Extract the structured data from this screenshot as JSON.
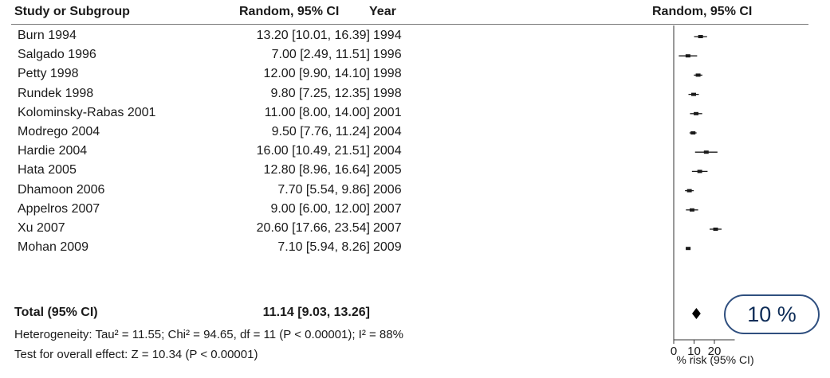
{
  "headers": {
    "study": "Study or Subgroup",
    "ci": "Random, 95% CI",
    "year": "Year",
    "plot": "Random, 95% CI"
  },
  "rows": [
    {
      "study": "Burn 1994",
      "ci": "13.20 [10.01, 16.39]",
      "year": "1994"
    },
    {
      "study": "Salgado 1996",
      "ci": "7.00 [2.49, 11.51]",
      "year": "1996"
    },
    {
      "study": "Petty 1998",
      "ci": "12.00 [9.90, 14.10]",
      "year": "1998"
    },
    {
      "study": "Rundek 1998",
      "ci": "9.80 [7.25, 12.35]",
      "year": "1998"
    },
    {
      "study": "Kolominsky-Rabas 2001",
      "ci": "11.00 [8.00, 14.00]",
      "year": "2001"
    },
    {
      "study": "Modrego 2004",
      "ci": "9.50 [7.76, 11.24]",
      "year": "2004"
    },
    {
      "study": "Hardie 2004",
      "ci": "16.00 [10.49, 21.51]",
      "year": "2004"
    },
    {
      "study": "Hata 2005",
      "ci": "12.80 [8.96, 16.64]",
      "year": "2005"
    },
    {
      "study": "Dhamoon 2006",
      "ci": "7.70 [5.54, 9.86]",
      "year": "2006"
    },
    {
      "study": "Appelros 2007",
      "ci": "9.00 [6.00, 12.00]",
      "year": "2007"
    },
    {
      "study": "Xu 2007",
      "ci": "20.60 [17.66, 23.54]",
      "year": "2007"
    },
    {
      "study": "Mohan 2009",
      "ci": "7.10 [5.94, 8.26]",
      "year": "2009"
    }
  ],
  "total": {
    "label": "Total (95% CI)",
    "ci": "11.14 [9.03, 13.26]"
  },
  "heterogeneity": "Heterogeneity: Tau² = 11.55; Chi² = 94.65, df = 11 (P < 0.00001); I² = 88%",
  "overall_effect": "Test for overall effect: Z = 10.34 (P < 0.00001)",
  "badge": "10 %",
  "colors": {
    "badge_border": "#2f4f7f",
    "badge_text": "#0d2c57",
    "marks": "#1a1a1a"
  },
  "chart_data": {
    "type": "forest",
    "xlabel": "% risk (95% CI)",
    "x_ticks": [
      "0",
      "10",
      "20"
    ],
    "xlim": [
      0,
      30
    ],
    "estimates": [
      {
        "study": "Burn 1994",
        "est": 13.2,
        "lo": 10.01,
        "hi": 16.39
      },
      {
        "study": "Salgado 1996",
        "est": 7.0,
        "lo": 2.49,
        "hi": 11.51
      },
      {
        "study": "Petty 1998",
        "est": 12.0,
        "lo": 9.9,
        "hi": 14.1
      },
      {
        "study": "Rundek 1998",
        "est": 9.8,
        "lo": 7.25,
        "hi": 12.35
      },
      {
        "study": "Kolominsky-Rabas 2001",
        "est": 11.0,
        "lo": 8.0,
        "hi": 14.0
      },
      {
        "study": "Modrego 2004",
        "est": 9.5,
        "lo": 7.76,
        "hi": 11.24
      },
      {
        "study": "Hardie 2004",
        "est": 16.0,
        "lo": 10.49,
        "hi": 21.51
      },
      {
        "study": "Hata 2005",
        "est": 12.8,
        "lo": 8.96,
        "hi": 16.64
      },
      {
        "study": "Dhamoon 2006",
        "est": 7.7,
        "lo": 5.54,
        "hi": 9.86
      },
      {
        "study": "Appelros 2007",
        "est": 9.0,
        "lo": 6.0,
        "hi": 12.0
      },
      {
        "study": "Xu 2007",
        "est": 20.6,
        "lo": 17.66,
        "hi": 23.54
      },
      {
        "study": "Mohan 2009",
        "est": 7.1,
        "lo": 5.94,
        "hi": 8.26
      }
    ],
    "pooled": {
      "est": 11.14,
      "lo": 9.03,
      "hi": 13.26
    }
  }
}
